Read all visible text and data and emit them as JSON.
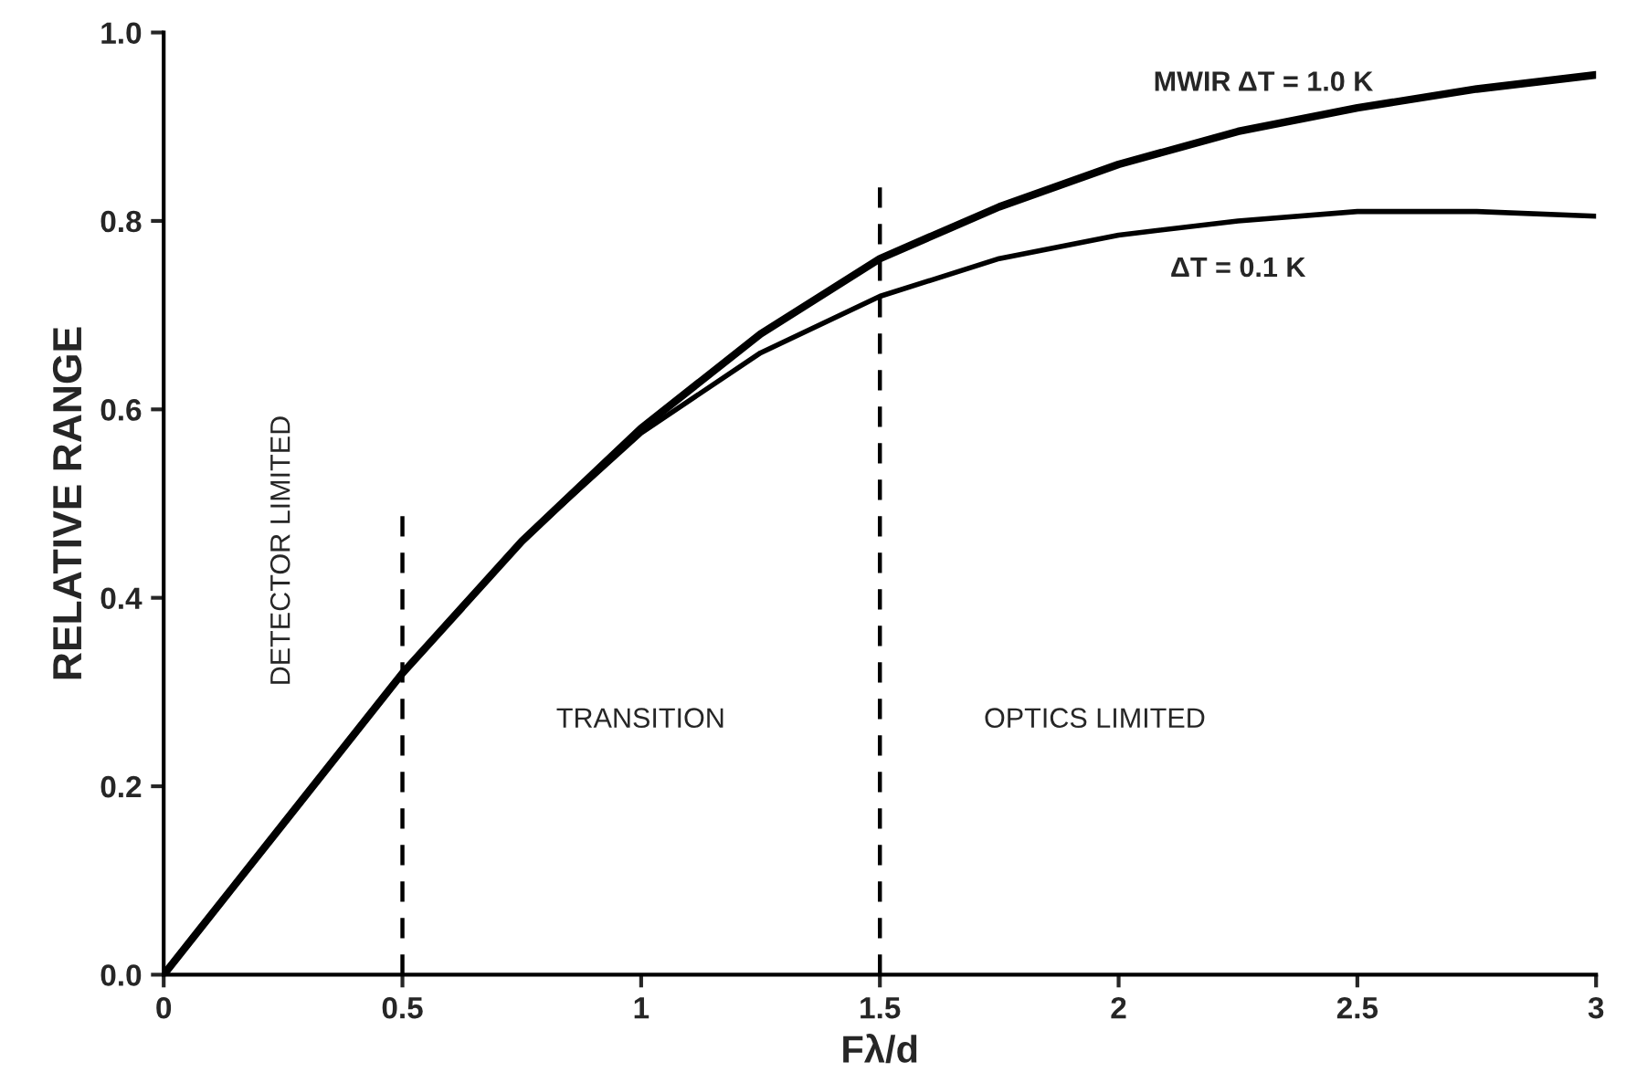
{
  "chart_data": {
    "type": "line",
    "xlabel": "Fλ/d",
    "ylabel": "RELATIVE RANGE",
    "x": [
      0,
      0.25,
      0.5,
      0.75,
      1,
      1.25,
      1.5,
      1.75,
      2,
      2.25,
      2.5,
      2.75,
      3
    ],
    "series": [
      {
        "name": "MWIR ΔT = 1.0 K",
        "color": "#000000",
        "values": [
          0,
          0.16,
          0.32,
          0.46,
          0.58,
          0.68,
          0.76,
          0.815,
          0.86,
          0.895,
          0.92,
          0.94,
          0.955
        ]
      },
      {
        "name": "ΔT = 0.1 K",
        "color": "#000000",
        "values": [
          0,
          0.16,
          0.32,
          0.46,
          0.575,
          0.66,
          0.72,
          0.76,
          0.785,
          0.8,
          0.81,
          0.81,
          0.805
        ]
      }
    ],
    "ref_lines": [
      {
        "axis": "x",
        "value": 0.5,
        "color": "#000000",
        "line_style": "dashed"
      },
      {
        "axis": "x",
        "value": 1.5,
        "color": "#000000",
        "line_style": "dashed"
      }
    ],
    "annotations": [
      "DETECTOR LIMITED",
      "TRANSITION",
      "OPTICS LIMITED"
    ],
    "xlim": [
      0,
      3
    ],
    "ylim": [
      0,
      1.0
    ],
    "xticks": [
      0,
      0.5,
      1,
      1.5,
      2,
      2.5,
      3
    ],
    "yticks": [
      {
        "value": 0,
        "label": "0.0"
      },
      {
        "value": 0.2,
        "label": "0.2"
      },
      {
        "value": 0.4,
        "label": "0.4"
      },
      {
        "value": 0.6,
        "label": "0.6"
      },
      {
        "value": 0.8,
        "label": "0.8"
      },
      {
        "value": 1.0,
        "label": "1.0"
      }
    ],
    "grid": false,
    "legend": false,
    "marker": "none"
  }
}
